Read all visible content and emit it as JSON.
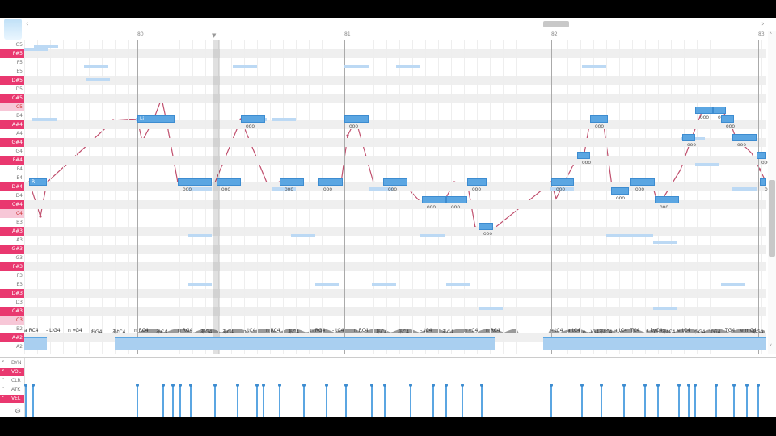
{
  "ruler": {
    "bars": [
      "80",
      "81",
      "82",
      "83"
    ]
  },
  "keys": [
    "G5",
    "F#5",
    "F5",
    "E5",
    "D#5",
    "D5",
    "C#5",
    "C5",
    "B4",
    "A#4",
    "A4",
    "G#4",
    "G4",
    "F#4",
    "F4",
    "E4",
    "D#4",
    "D4",
    "C#4",
    "C4",
    "B3",
    "A#3",
    "A3",
    "G#3",
    "G3",
    "F#3",
    "F3",
    "E3",
    "D#3",
    "D3",
    "C#3",
    "C3",
    "B2",
    "A#2",
    "A2"
  ],
  "notes": [
    {
      "label": "R",
      "lyric": ""
    },
    {
      "label": "Li",
      "lyric": ""
    },
    {
      "label": "",
      "lyric": "ooo"
    },
    {
      "label": "",
      "lyric": "ooo"
    },
    {
      "label": "",
      "lyric": "ooo"
    },
    {
      "label": "",
      "lyric": "ooo"
    },
    {
      "label": "",
      "lyric": "ooo"
    },
    {
      "label": "",
      "lyric": "ooo"
    },
    {
      "label": "",
      "lyric": "ooo"
    },
    {
      "label": "",
      "lyric": "ooo"
    },
    {
      "label": "",
      "lyric": "ooo"
    },
    {
      "label": "",
      "lyric": "ooo"
    },
    {
      "label": "",
      "lyric": "ooo"
    },
    {
      "label": "",
      "lyric": "ooo"
    },
    {
      "label": "",
      "lyric": "ooo"
    },
    {
      "label": "",
      "lyric": "ooo"
    },
    {
      "label": "",
      "lyric": "ooo"
    },
    {
      "label": "",
      "lyric": "ooo"
    },
    {
      "label": "",
      "lyric": "ooo"
    },
    {
      "label": "",
      "lyric": "ooo"
    },
    {
      "label": "",
      "lyric": "ooo"
    },
    {
      "label": "",
      "lyric": "ooo"
    },
    {
      "label": "",
      "lyric": "ooo"
    },
    {
      "label": "",
      "lyric": "ooo"
    },
    {
      "label": "",
      "lyric": "ooo"
    },
    {
      "label": "",
      "lyric": "ooo"
    }
  ],
  "phonemes": [
    "a RC4",
    "- LiG4",
    "n yG4",
    "おG4",
    "あtC4",
    "n RC4",
    "あC4",
    "n RG4",
    "あG4",
    "あC4",
    "- tC4",
    "n RC4",
    "あC4",
    "n RG4",
    "- tC4",
    "n RC4",
    "あC4",
    "あC4",
    "- tC4",
    "あC4",
    "n yC4",
    "n RC4",
    "- tC4",
    "a tC4",
    "o いG4",
    "あtC4",
    "a tC4",
    "TC4",
    "a kyC4",
    "あtC4",
    "e tC4",
    "うG4",
    "かG4",
    "TG4",
    "e mG4",
    "あG4"
  ],
  "expression": {
    "tabs": [
      "DYN",
      "VOL",
      "CLR",
      "ATK",
      "VEL"
    ],
    "active": "VOL"
  },
  "colors": {
    "accent": "#e9386f",
    "note": "#5ba6e2",
    "pitch": "#c0506e",
    "wave": "#9a9a9a"
  }
}
